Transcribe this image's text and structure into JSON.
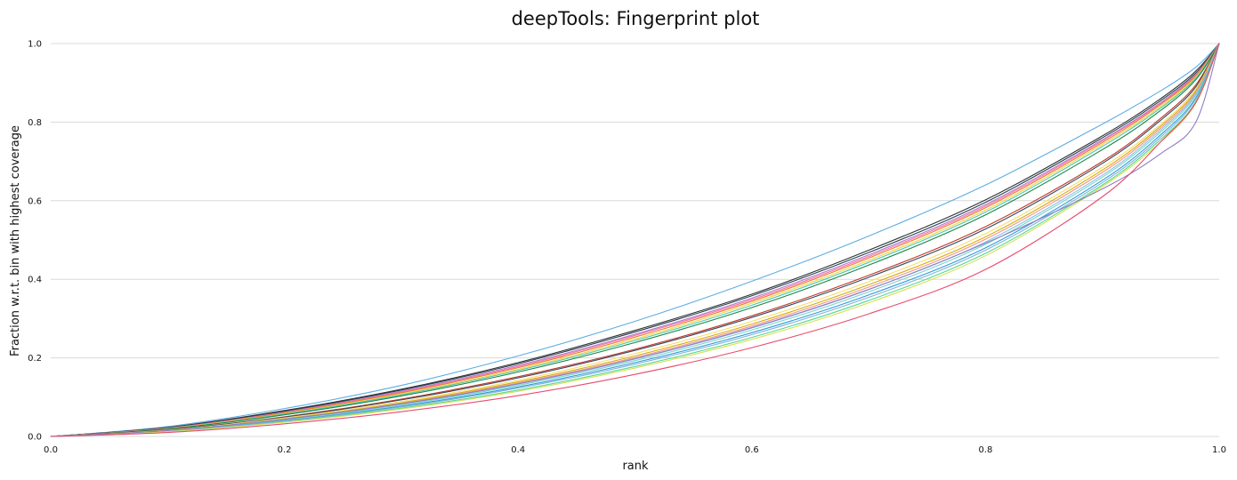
{
  "chart_data": {
    "type": "line",
    "title": "deepTools: Fingerprint plot",
    "xlabel": "rank",
    "ylabel": "Fraction w.r.t. bin with highest coverage",
    "xlim": [
      0,
      1
    ],
    "ylim": [
      0,
      1
    ],
    "xticks": [
      "0.0",
      "0.2",
      "0.4",
      "0.6",
      "0.8",
      "1.0"
    ],
    "yticks": [
      "0.0",
      "0.2",
      "0.4",
      "0.6",
      "0.8",
      "1.0"
    ],
    "grid": "horizontal",
    "x": [
      0.0,
      0.1,
      0.2,
      0.3,
      0.4,
      0.5,
      0.6,
      0.7,
      0.8,
      0.9,
      0.95,
      0.98,
      1.0
    ],
    "series": [
      {
        "color": "#5dade2",
        "values": [
          0.0,
          0.025,
          0.071,
          0.13,
          0.205,
          0.293,
          0.395,
          0.51,
          0.64,
          0.795,
          0.88,
          0.94,
          1.0
        ]
      },
      {
        "color": "#2d3436",
        "values": [
          0.0,
          0.023,
          0.066,
          0.12,
          0.188,
          0.27,
          0.362,
          0.474,
          0.602,
          0.765,
          0.86,
          0.93,
          1.0
        ]
      },
      {
        "color": "#2c3e50",
        "values": [
          0.0,
          0.022,
          0.064,
          0.118,
          0.185,
          0.266,
          0.358,
          0.468,
          0.596,
          0.76,
          0.855,
          0.925,
          1.0
        ]
      },
      {
        "color": "#af7ac5",
        "values": [
          0.0,
          0.021,
          0.062,
          0.115,
          0.181,
          0.26,
          0.352,
          0.462,
          0.59,
          0.755,
          0.85,
          0.922,
          1.0
        ]
      },
      {
        "color": "#ff6fae",
        "values": [
          0.0,
          0.021,
          0.061,
          0.113,
          0.178,
          0.257,
          0.348,
          0.458,
          0.586,
          0.752,
          0.848,
          0.92,
          1.0
        ]
      },
      {
        "color": "#e67e22",
        "values": [
          0.0,
          0.02,
          0.06,
          0.111,
          0.175,
          0.253,
          0.344,
          0.454,
          0.582,
          0.748,
          0.845,
          0.918,
          1.0
        ]
      },
      {
        "color": "#f4d03f",
        "values": [
          0.0,
          0.02,
          0.058,
          0.108,
          0.171,
          0.248,
          0.339,
          0.448,
          0.576,
          0.743,
          0.84,
          0.915,
          1.0
        ]
      },
      {
        "color": "#48c9b0",
        "values": [
          0.0,
          0.019,
          0.057,
          0.106,
          0.168,
          0.244,
          0.334,
          0.443,
          0.571,
          0.738,
          0.836,
          0.912,
          1.0
        ]
      },
      {
        "color": "#1e8449",
        "values": [
          0.0,
          0.019,
          0.055,
          0.103,
          0.164,
          0.239,
          0.328,
          0.436,
          0.564,
          0.73,
          0.83,
          0.908,
          1.0
        ]
      },
      {
        "color": "#c0392b",
        "values": [
          0.0,
          0.017,
          0.05,
          0.095,
          0.152,
          0.222,
          0.307,
          0.41,
          0.534,
          0.7,
          0.81,
          0.895,
          1.0
        ]
      },
      {
        "color": "#34495e",
        "values": [
          0.0,
          0.017,
          0.049,
          0.093,
          0.149,
          0.219,
          0.303,
          0.405,
          0.528,
          0.695,
          0.805,
          0.89,
          1.0
        ]
      },
      {
        "color": "#f7dc6f",
        "values": [
          0.0,
          0.016,
          0.047,
          0.089,
          0.143,
          0.211,
          0.293,
          0.394,
          0.516,
          0.685,
          0.795,
          0.885,
          1.0
        ]
      },
      {
        "color": "#d4ac0d",
        "values": [
          0.0,
          0.015,
          0.045,
          0.086,
          0.139,
          0.205,
          0.286,
          0.386,
          0.508,
          0.678,
          0.79,
          0.88,
          1.0
        ]
      },
      {
        "color": "#f1948a",
        "values": [
          0.0,
          0.015,
          0.044,
          0.084,
          0.136,
          0.201,
          0.281,
          0.38,
          0.502,
          0.672,
          0.785,
          0.876,
          1.0
        ]
      },
      {
        "color": "#85c1e9",
        "values": [
          0.0,
          0.014,
          0.043,
          0.082,
          0.133,
          0.197,
          0.276,
          0.374,
          0.495,
          0.665,
          0.78,
          0.872,
          1.0
        ]
      },
      {
        "color": "#76d7c4",
        "values": [
          0.0,
          0.014,
          0.042,
          0.08,
          0.13,
          0.193,
          0.271,
          0.368,
          0.489,
          0.66,
          0.775,
          0.868,
          1.0
        ]
      },
      {
        "color": "#3498db",
        "values": [
          0.0,
          0.013,
          0.04,
          0.077,
          0.126,
          0.188,
          0.264,
          0.36,
          0.48,
          0.652,
          0.768,
          0.862,
          1.0
        ]
      },
      {
        "color": "#7fb3d5",
        "values": [
          0.0,
          0.013,
          0.039,
          0.075,
          0.123,
          0.184,
          0.259,
          0.354,
          0.474,
          0.646,
          0.762,
          0.858,
          1.0
        ]
      },
      {
        "color": "#58d68d",
        "values": [
          0.0,
          0.012,
          0.037,
          0.072,
          0.118,
          0.178,
          0.252,
          0.346,
          0.466,
          0.64,
          0.756,
          0.852,
          1.0
        ]
      },
      {
        "color": "#d4e157",
        "values": [
          0.0,
          0.012,
          0.036,
          0.07,
          0.115,
          0.174,
          0.247,
          0.34,
          0.46,
          0.636,
          0.75,
          0.848,
          1.0
        ]
      },
      {
        "color": "#8e7cc3",
        "values": [
          0.0,
          0.015,
          0.044,
          0.083,
          0.134,
          0.198,
          0.277,
          0.374,
          0.492,
          0.63,
          0.72,
          0.8,
          1.0
        ]
      },
      {
        "color": "#e74c6f",
        "values": [
          0.0,
          0.01,
          0.032,
          0.063,
          0.104,
          0.158,
          0.226,
          0.312,
          0.425,
          0.61,
          0.75,
          0.85,
          1.0
        ]
      }
    ]
  }
}
